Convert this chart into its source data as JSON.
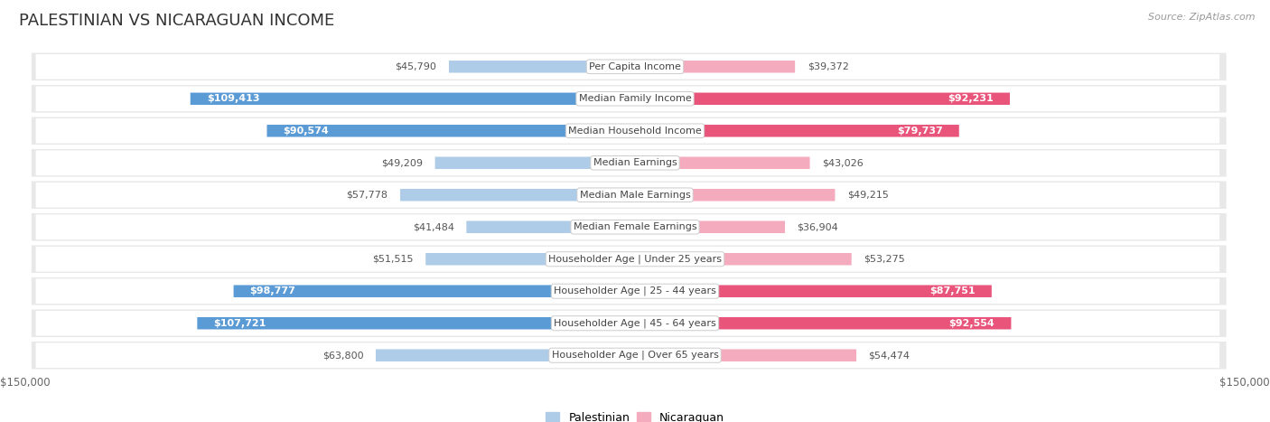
{
  "title": "PALESTINIAN VS NICARAGUAN INCOME",
  "source": "Source: ZipAtlas.com",
  "categories": [
    "Per Capita Income",
    "Median Family Income",
    "Median Household Income",
    "Median Earnings",
    "Median Male Earnings",
    "Median Female Earnings",
    "Householder Age | Under 25 years",
    "Householder Age | 25 - 44 years",
    "Householder Age | 45 - 64 years",
    "Householder Age | Over 65 years"
  ],
  "palestinian_values": [
    45790,
    109413,
    90574,
    49209,
    57778,
    41484,
    51515,
    98777,
    107721,
    63800
  ],
  "nicaraguan_values": [
    39372,
    92231,
    79737,
    43026,
    49215,
    36904,
    53275,
    87751,
    92554,
    54474
  ],
  "palestinian_labels": [
    "$45,790",
    "$109,413",
    "$90,574",
    "$49,209",
    "$57,778",
    "$41,484",
    "$51,515",
    "$98,777",
    "$107,721",
    "$63,800"
  ],
  "nicaraguan_labels": [
    "$39,372",
    "$92,231",
    "$79,737",
    "$43,026",
    "$49,215",
    "$36,904",
    "$53,275",
    "$87,751",
    "$92,554",
    "$54,474"
  ],
  "max_value": 150000,
  "palestinian_light": "#AECCE8",
  "palestinian_dark": "#5B9BD5",
  "nicaraguan_light": "#F5ABBE",
  "nicaraguan_dark": "#E8547A",
  "label_inside_threshold_pal": 65000,
  "label_inside_threshold_nic": 65000,
  "row_bg": "#E8E8E8",
  "row_inner_bg": "#F5F5F5",
  "bg_color": "#FFFFFF",
  "title_fontsize": 13,
  "source_fontsize": 8,
  "axis_label_fontsize": 8.5,
  "bar_label_fontsize": 8,
  "category_fontsize": 8,
  "legend_pal_color": "#AECCE8",
  "legend_nic_color": "#F5ABBE"
}
